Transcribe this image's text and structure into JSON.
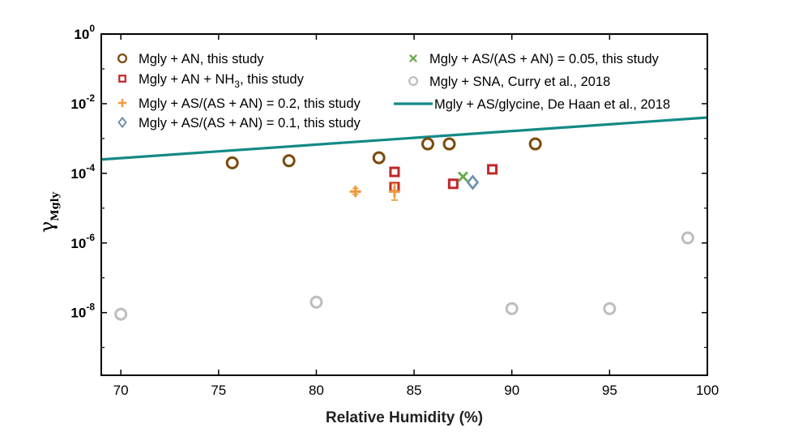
{
  "chart_data": {
    "type": "scatter",
    "xlabel": "Relative Humidity (%)",
    "ylabel": {
      "symbol": "γ",
      "subscript": "Mgly"
    },
    "yscale": "log",
    "xlim": [
      69,
      100
    ],
    "ylim_exponent": [
      -9.8,
      0
    ],
    "x_ticks": [
      70,
      75,
      80,
      85,
      90,
      95,
      100
    ],
    "y_ticks": [
      {
        "exp": 0,
        "base": "10",
        "sup": "0"
      },
      {
        "exp": -2,
        "base": "10",
        "sup": "-2"
      },
      {
        "exp": -4,
        "base": "10",
        "sup": "-4"
      },
      {
        "exp": -6,
        "base": "10",
        "sup": "-6"
      },
      {
        "exp": -8,
        "base": "10",
        "sup": "-8"
      }
    ],
    "series": [
      {
        "key": "an",
        "name": "Mgly + AN, this study",
        "marker": "circle",
        "color": "#7b4a0d",
        "points": [
          [
            75.7,
            0.0002
          ],
          [
            78.6,
            0.00023
          ],
          [
            83.2,
            0.00028
          ],
          [
            85.7,
            0.0007
          ],
          [
            86.8,
            0.0007
          ],
          [
            91.2,
            0.0007
          ]
        ]
      },
      {
        "key": "nh3",
        "name": "Mgly + AN + NH",
        "name_sub": "3",
        "name_suffix": ", this study",
        "marker": "square",
        "color": "#c0282a",
        "points": [
          [
            84.0,
            0.00011
          ],
          [
            84.0,
            4e-05
          ],
          [
            87.0,
            5e-05
          ],
          [
            89.0,
            0.00013
          ]
        ]
      },
      {
        "key": "as02",
        "name": "Mgly + AS/(AS + AN) = 0.2, this study",
        "marker": "plus",
        "color": "#ee9a3c",
        "points": [
          [
            82.0,
            3e-05
          ],
          [
            84.0,
            3e-05
          ]
        ],
        "errorbars": [
          [
            82.0,
            2.5e-05,
            3.7e-05
          ],
          [
            84.0,
            1.7e-05,
            5e-05
          ]
        ]
      },
      {
        "key": "as01",
        "name": "Mgly + AS/(AS + AN) = 0.1, this study",
        "marker": "diamond",
        "color": "#6a8fb0",
        "points": [
          [
            88.0,
            5.5e-05
          ]
        ]
      },
      {
        "key": "as005",
        "name": "Mgly + AS/(AS + AN) = 0.05, this study",
        "marker": "x",
        "color": "#6aa84f",
        "points": [
          [
            87.5,
            8e-05
          ]
        ]
      },
      {
        "key": "sna",
        "name": "Mgly + SNA, Curry et al., 2018",
        "marker": "circle",
        "color": "#bdbdbd",
        "points": [
          [
            70.0,
            9e-09
          ],
          [
            80.0,
            2e-08
          ],
          [
            90.0,
            1.3e-08
          ],
          [
            95.0,
            1.3e-08
          ],
          [
            99.0,
            1.4e-06
          ]
        ]
      },
      {
        "key": "glycine",
        "name": "Mgly + AS/glycine, De Haan et al., 2018",
        "marker": "line",
        "color": "#138a86",
        "points": [
          [
            69,
            0.00025
          ],
          [
            100,
            0.004
          ]
        ]
      }
    ]
  }
}
